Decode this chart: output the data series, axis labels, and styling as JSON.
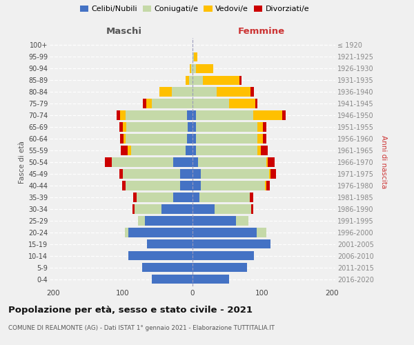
{
  "age_groups": [
    "0-4",
    "5-9",
    "10-14",
    "15-19",
    "20-24",
    "25-29",
    "30-34",
    "35-39",
    "40-44",
    "45-49",
    "50-54",
    "55-59",
    "60-64",
    "65-69",
    "70-74",
    "75-79",
    "80-84",
    "85-89",
    "90-94",
    "95-99",
    "100+"
  ],
  "birth_years": [
    "2016-2020",
    "2011-2015",
    "2006-2010",
    "2001-2005",
    "1996-2000",
    "1991-1995",
    "1986-1990",
    "1981-1985",
    "1976-1980",
    "1971-1975",
    "1966-1970",
    "1961-1965",
    "1956-1960",
    "1951-1955",
    "1946-1950",
    "1941-1945",
    "1936-1940",
    "1931-1935",
    "1926-1930",
    "1921-1925",
    "≤ 1920"
  ],
  "maschi_celibi": [
    58,
    72,
    92,
    65,
    92,
    68,
    45,
    28,
    18,
    18,
    28,
    10,
    8,
    7,
    8,
    0,
    0,
    0,
    0,
    0,
    0
  ],
  "maschi_coniugati": [
    0,
    0,
    0,
    0,
    5,
    10,
    38,
    52,
    78,
    82,
    88,
    78,
    88,
    88,
    88,
    58,
    30,
    5,
    2,
    0,
    0
  ],
  "maschi_vedovi": [
    0,
    0,
    0,
    0,
    0,
    0,
    0,
    0,
    0,
    0,
    0,
    5,
    3,
    5,
    8,
    8,
    18,
    5,
    2,
    0,
    0
  ],
  "maschi_divorziati": [
    0,
    0,
    0,
    0,
    0,
    0,
    3,
    5,
    5,
    5,
    10,
    10,
    5,
    5,
    5,
    5,
    0,
    0,
    0,
    0,
    0
  ],
  "femmine_nubili": [
    52,
    78,
    88,
    112,
    92,
    62,
    32,
    10,
    12,
    12,
    8,
    5,
    5,
    5,
    5,
    0,
    0,
    0,
    0,
    0,
    0
  ],
  "femmine_coniugate": [
    0,
    0,
    0,
    0,
    14,
    18,
    52,
    72,
    92,
    98,
    98,
    88,
    88,
    88,
    82,
    52,
    35,
    15,
    5,
    2,
    0
  ],
  "femmine_vedove": [
    0,
    0,
    0,
    0,
    0,
    0,
    0,
    0,
    2,
    2,
    2,
    5,
    8,
    8,
    42,
    38,
    48,
    52,
    25,
    5,
    0
  ],
  "femmine_divorziate": [
    0,
    0,
    0,
    0,
    0,
    0,
    3,
    5,
    5,
    8,
    10,
    10,
    5,
    5,
    5,
    3,
    5,
    3,
    0,
    0,
    0
  ],
  "colors": {
    "celibi": "#4472c4",
    "coniugati": "#c5d9a8",
    "vedovi": "#ffc000",
    "divorziati": "#cc0000"
  },
  "title": "Popolazione per età, sesso e stato civile - 2021",
  "subtitle": "COMUNE DI REALMONTE (AG) - Dati ISTAT 1° gennaio 2021 - Elaborazione TUTTITALIA.IT",
  "label_maschi": "Maschi",
  "label_femmine": "Femmine",
  "ylabel_left": "Fasce di età",
  "ylabel_right": "Anni di nascita",
  "xlim": 205,
  "legend_labels": [
    "Celibi/Nubili",
    "Coniugati/e",
    "Vedovi/e",
    "Divorziati/e"
  ],
  "bg_color": "#f0f0f0"
}
